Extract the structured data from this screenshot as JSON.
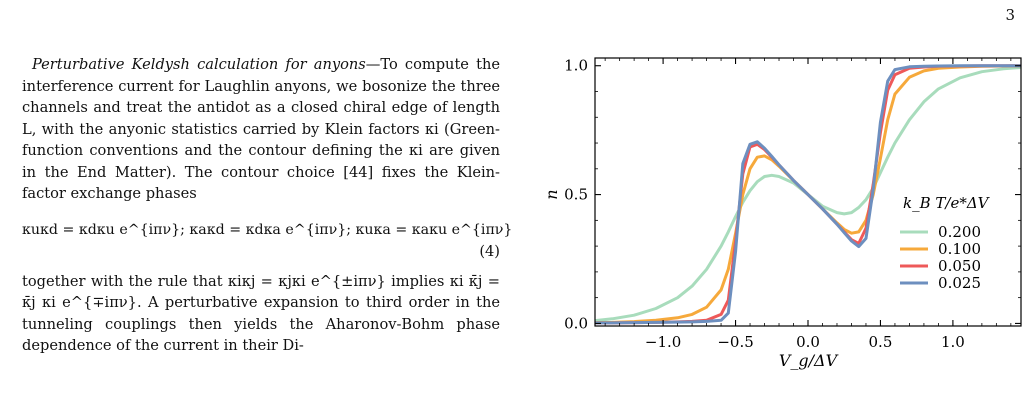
{
  "page_number": "3",
  "text": {
    "runin_heading": "Perturbative Keldysh calculation for anyons",
    "para1": "—To compute the interference current for Laughlin anyons, we bosonize the three channels and treat the antidot as a closed chiral edge of length L, with the anyonic statistics carried by Klein factors κi (Green-function conventions and the contour defining the κi are given in the End Matter). The contour choice [44] fixes the Klein-factor exchange phases",
    "equation": "κuκd = κdκu e^{iπν};  κaκd = κdκa e^{iπν};  κuκa = κaκu e^{iπν}",
    "equation_number": "(4)",
    "para2": "together with the rule that κiκj = κjκi e^{±iπν} implies κi κ̄j = κ̄j κi e^{∓iπν}. A perturbative expansion to third order in the tunneling couplings then yields the Aharonov-Bohm phase dependence of the current in their Di-"
  },
  "chart_data": {
    "type": "line",
    "title": "",
    "xlabel": "V_g/ΔV",
    "ylabel": "n",
    "xlim": [
      -1.47,
      1.47
    ],
    "ylim": [
      -0.01,
      1.03
    ],
    "xticks": [
      -1.0,
      -0.5,
      0.0,
      0.5,
      1.0
    ],
    "xtick_labels": [
      "−1.0",
      "−0.5",
      "0.0",
      "0.5",
      "1.0"
    ],
    "yticks": [
      0.0,
      0.5,
      1.0
    ],
    "ytick_labels": [
      "0.0",
      "0.5",
      "1.0"
    ],
    "grid": false,
    "legend_title": "k_B T/e*ΔV",
    "legend_position": "center-right",
    "x": [
      -1.47,
      -1.35,
      -1.2,
      -1.05,
      -0.9,
      -0.8,
      -0.7,
      -0.6,
      -0.55,
      -0.5,
      -0.45,
      -0.4,
      -0.35,
      -0.3,
      -0.25,
      -0.2,
      -0.1,
      0.0,
      0.1,
      0.2,
      0.25,
      0.3,
      0.35,
      0.4,
      0.45,
      0.5,
      0.55,
      0.6,
      0.7,
      0.8,
      0.9,
      1.05,
      1.2,
      1.35,
      1.47
    ],
    "series": [
      {
        "name": "0.200",
        "color": "#a8dcbc",
        "values": [
          0.011,
          0.018,
          0.032,
          0.058,
          0.1,
          0.145,
          0.21,
          0.3,
          0.355,
          0.415,
          0.47,
          0.515,
          0.55,
          0.57,
          0.575,
          0.57,
          0.545,
          0.5,
          0.455,
          0.43,
          0.425,
          0.43,
          0.45,
          0.48,
          0.525,
          0.585,
          0.645,
          0.7,
          0.79,
          0.86,
          0.91,
          0.953,
          0.977,
          0.988,
          0.993
        ]
      },
      {
        "name": "0.100",
        "color": "#f6a93b",
        "values": [
          0.003,
          0.004,
          0.007,
          0.012,
          0.022,
          0.035,
          0.063,
          0.13,
          0.21,
          0.35,
          0.5,
          0.6,
          0.645,
          0.65,
          0.635,
          0.61,
          0.555,
          0.5,
          0.445,
          0.39,
          0.365,
          0.35,
          0.355,
          0.4,
          0.5,
          0.64,
          0.79,
          0.89,
          0.955,
          0.98,
          0.99,
          0.995,
          0.998,
          0.999,
          1.0
        ]
      },
      {
        "name": "0.050",
        "color": "#ee5959",
        "values": [
          0.002,
          0.002,
          0.003,
          0.004,
          0.006,
          0.008,
          0.012,
          0.035,
          0.09,
          0.32,
          0.58,
          0.685,
          0.695,
          0.675,
          0.645,
          0.615,
          0.555,
          0.5,
          0.445,
          0.385,
          0.355,
          0.325,
          0.31,
          0.37,
          0.54,
          0.74,
          0.905,
          0.965,
          0.99,
          0.995,
          0.998,
          0.999,
          1.0,
          1.0,
          1.0
        ]
      },
      {
        "name": "0.025",
        "color": "#6d8fbf",
        "values": [
          0.002,
          0.002,
          0.003,
          0.004,
          0.005,
          0.006,
          0.008,
          0.012,
          0.04,
          0.28,
          0.62,
          0.695,
          0.705,
          0.68,
          0.648,
          0.615,
          0.555,
          0.5,
          0.445,
          0.385,
          0.352,
          0.32,
          0.298,
          0.33,
          0.52,
          0.78,
          0.94,
          0.985,
          0.996,
          0.998,
          0.999,
          1.0,
          1.0,
          1.0,
          1.0
        ]
      }
    ]
  }
}
